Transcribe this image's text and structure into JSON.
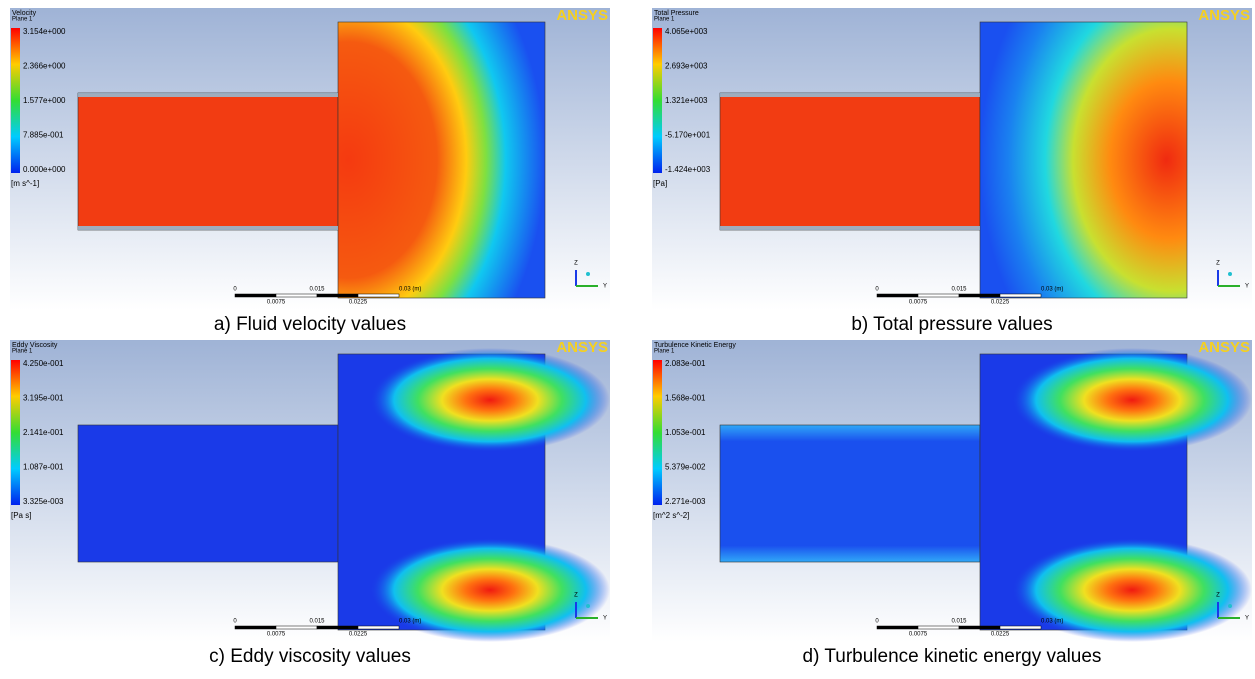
{
  "common": {
    "logo": "ANSYS",
    "plane": "Plane 1",
    "scale_labels": [
      "0",
      "0.015",
      "0.03 (m)",
      "0.0075",
      "0.0225"
    ],
    "axes": [
      "Z",
      "Y"
    ]
  },
  "panels": [
    {
      "title": "Velocity",
      "legend_ticks": [
        "3.154e+000",
        "2.366e+000",
        "1.577e+000",
        "7.885e-001",
        "0.000e+000"
      ],
      "unit": "[m s^-1]",
      "caption": "a) Fluid velocity values"
    },
    {
      "title": "Total Pressure",
      "legend_ticks": [
        "4.065e+003",
        "2.693e+003",
        "1.321e+003",
        "-5.170e+001",
        "-1.424e+003"
      ],
      "unit": "[Pa]",
      "caption": "b) Total pressure values"
    },
    {
      "title": "Eddy Viscosity",
      "legend_ticks": [
        "4.250e-001",
        "3.195e-001",
        "2.141e-001",
        "1.087e-001",
        "3.325e-003"
      ],
      "unit": "[Pa s]",
      "caption": "c) Eddy viscosity values"
    },
    {
      "title": "Turbulence Kinetic Energy",
      "legend_ticks": [
        "2.083e-001",
        "1.568e-001",
        "1.053e-001",
        "5.379e-002",
        "2.271e-003"
      ],
      "unit": "[m^2 s^-2]",
      "caption": "d) Turbulence kinetic energy values"
    }
  ]
}
